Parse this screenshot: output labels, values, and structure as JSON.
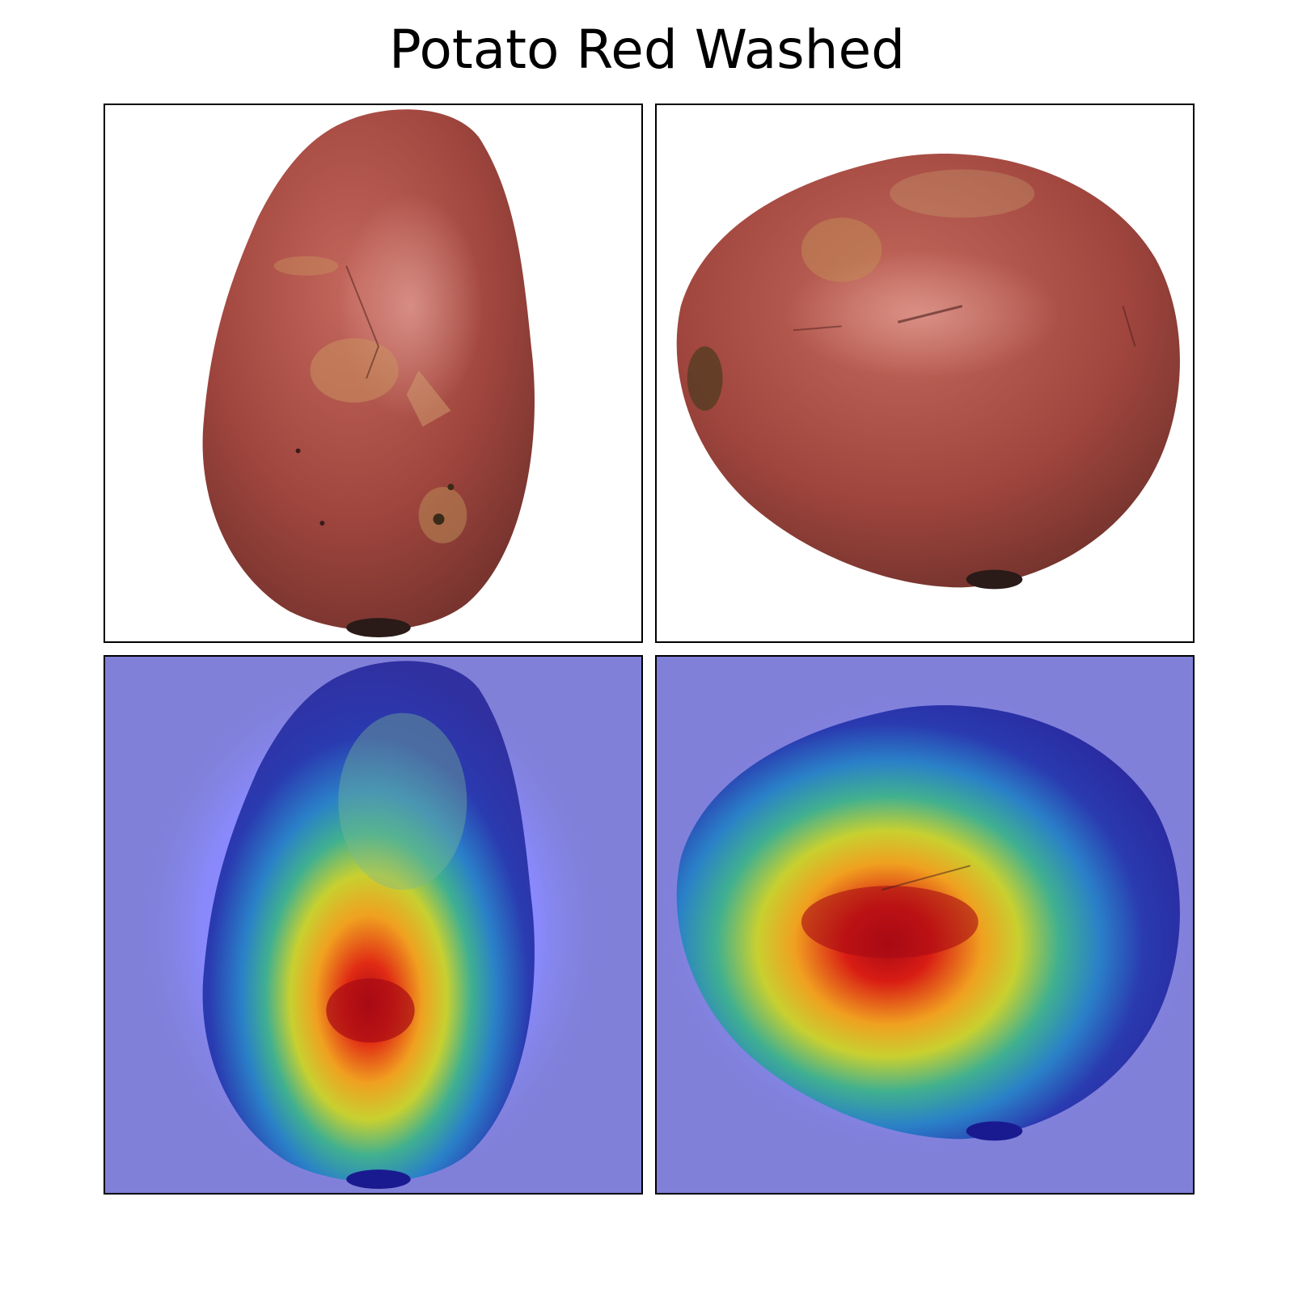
{
  "figure": {
    "title": "Potato Red Washed"
  },
  "panels": [
    {
      "name": "original-upright",
      "kind": "photo"
    },
    {
      "name": "original-tilted",
      "kind": "photo"
    },
    {
      "name": "heatmap-upright",
      "kind": "heatmap-overlay",
      "colormap": "jet"
    },
    {
      "name": "heatmap-tilted",
      "kind": "heatmap-overlay",
      "colormap": "jet"
    }
  ],
  "colors": {
    "potato_skin": "#a0483f",
    "potato_shadow": "#5e2a25",
    "heatmap_background": "#8080d8",
    "heatmap_hot": "#c81010"
  }
}
